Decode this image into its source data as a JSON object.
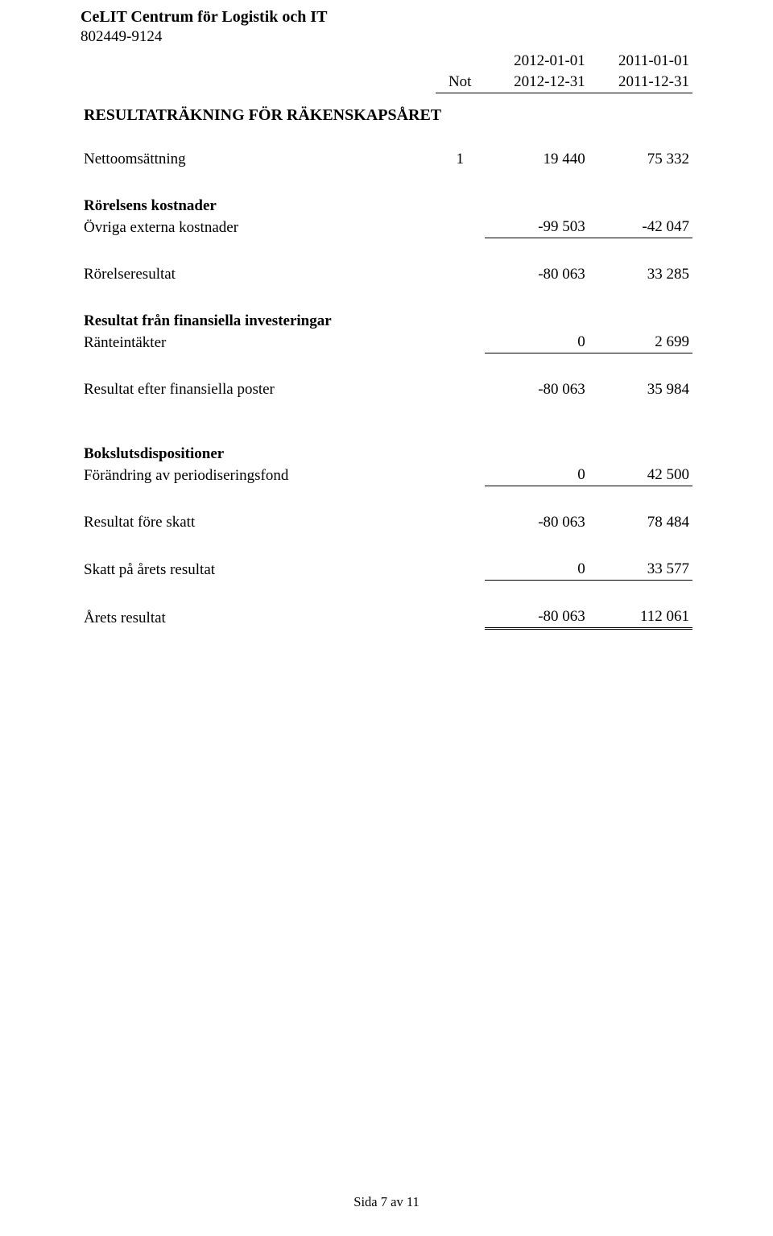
{
  "header": {
    "company_name": "CeLIT Centrum för Logistik och IT",
    "org_number": "802449-9124"
  },
  "period_header": {
    "not_label": "Not",
    "col1_top": "2012-01-01",
    "col1_bot": "2012-12-31",
    "col2_top": "2011-01-01",
    "col2_bot": "2011-12-31"
  },
  "section_title": "RESULTATRÄKNING FÖR RÄKENSKAPSÅRET",
  "rows": {
    "netto": {
      "label": "Nettoomsättning",
      "not": "1",
      "v1": "19 440",
      "v2": "75 332"
    },
    "rorkost_h": {
      "label": "Rörelsens kostnader"
    },
    "ovriga": {
      "label": "Övriga externa kostnader",
      "v1": "-99 503",
      "v2": "-42 047"
    },
    "rorres": {
      "label": "Rörelseresultat",
      "v1": "-80 063",
      "v2": "33 285"
    },
    "fininv_h": {
      "label": "Resultat från finansiella investeringar"
    },
    "rante": {
      "label": "Ränteintäkter",
      "v1": "0",
      "v2": "2 699"
    },
    "resfin": {
      "label": "Resultat efter finansiella poster",
      "v1": "-80 063",
      "v2": "35 984"
    },
    "bok_h": {
      "label": "Bokslutsdispositioner"
    },
    "periodf": {
      "label": "Förändring av periodiseringsfond",
      "v1": "0",
      "v2": "42 500"
    },
    "resfor": {
      "label": "Resultat före skatt",
      "v1": "-80 063",
      "v2": "78 484"
    },
    "skatt": {
      "label": "Skatt på årets resultat",
      "v1": "0",
      "v2": "33 577"
    },
    "arets": {
      "label": "Årets resultat",
      "v1": "-80 063",
      "v2": "112 061"
    }
  },
  "footer": "Sida 7 av 11"
}
